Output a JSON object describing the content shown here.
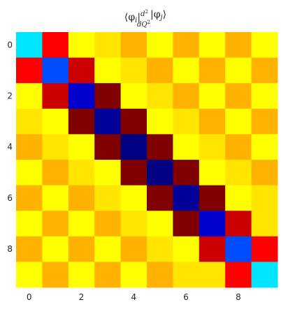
{
  "chart_data": {
    "type": "heatmap",
    "title": "⟨φᵢ| d²/dQ² |φⱼ⟩",
    "title_parts": {
      "prefix": "⟨φ",
      "i": "i",
      "bar1": "|",
      "num": "d",
      "num_exp": "2",
      "den": "dQ",
      "den_exp": "2",
      "bar2": "|φ",
      "j": "j",
      "suffix": "⟩"
    },
    "colormap": "jet",
    "grid": false,
    "value_range": [
      -1,
      1
    ],
    "rows": 10,
    "cols": 10,
    "x_tick_labels": [
      "0",
      "2",
      "4",
      "6",
      "8"
    ],
    "x_tick_positions": [
      0,
      2,
      4,
      6,
      8
    ],
    "y_tick_labels": [
      "0",
      "2",
      "4",
      "6",
      "8"
    ],
    "y_tick_positions": [
      0,
      2,
      4,
      6,
      8
    ],
    "matrix": [
      [
        -0.3,
        0.75,
        0.25,
        0.3,
        0.4,
        0.25,
        0.4,
        0.25,
        0.4,
        0.25
      ],
      [
        0.75,
        -0.6,
        0.85,
        0.25,
        0.3,
        0.4,
        0.25,
        0.4,
        0.25,
        0.4
      ],
      [
        0.25,
        0.85,
        -0.85,
        1.0,
        0.25,
        0.3,
        0.4,
        0.25,
        0.4,
        0.25
      ],
      [
        0.3,
        0.25,
        1.0,
        -0.95,
        1.0,
        0.25,
        0.3,
        0.4,
        0.25,
        0.4
      ],
      [
        0.4,
        0.3,
        0.25,
        1.0,
        -1.0,
        1.0,
        0.25,
        0.3,
        0.4,
        0.25
      ],
      [
        0.25,
        0.4,
        0.3,
        0.25,
        1.0,
        -1.0,
        1.0,
        0.25,
        0.3,
        0.4
      ],
      [
        0.4,
        0.25,
        0.4,
        0.3,
        0.25,
        1.0,
        -0.95,
        1.0,
        0.25,
        0.3
      ],
      [
        0.25,
        0.4,
        0.25,
        0.4,
        0.3,
        0.25,
        1.0,
        -0.85,
        0.85,
        0.3
      ],
      [
        0.4,
        0.25,
        0.4,
        0.25,
        0.4,
        0.3,
        0.25,
        0.85,
        -0.6,
        0.75
      ],
      [
        0.25,
        0.4,
        0.25,
        0.4,
        0.25,
        0.4,
        0.3,
        0.3,
        0.75,
        -0.3
      ]
    ]
  }
}
